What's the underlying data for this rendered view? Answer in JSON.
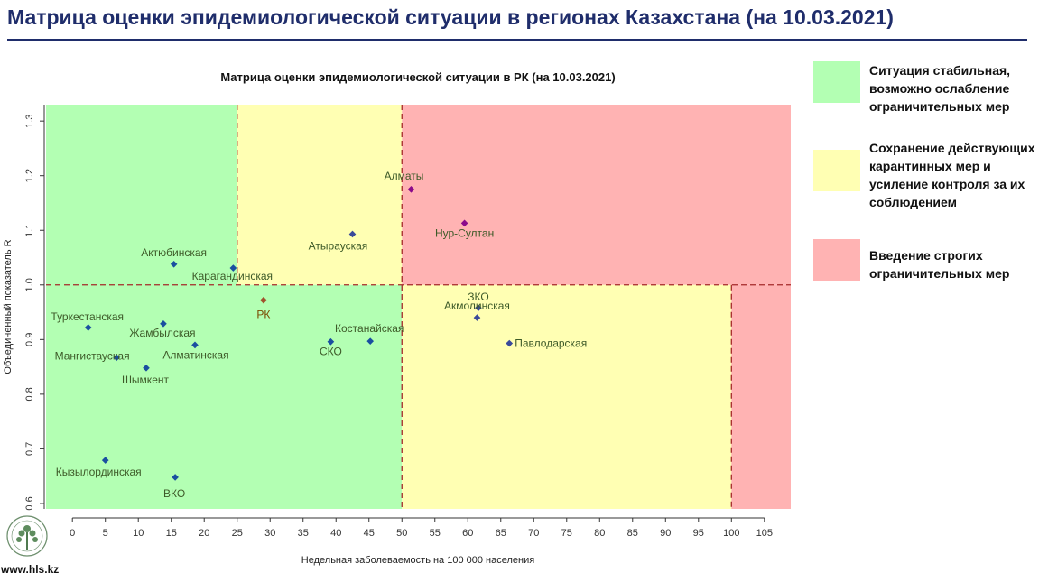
{
  "header": {
    "title": "Матрица оценки эпидемиологической ситуации в регионах Казахстана (на 10.03.2021)"
  },
  "legend": {
    "items": [
      {
        "color": "#b3ffb3",
        "text_lines": [
          "Ситуация стабильная,",
          "возможно ослабление",
          "ограничительных мер"
        ]
      },
      {
        "color": "#ffffb3",
        "text_lines": [
          "Сохранение действующих",
          "карантинных мер и",
          "усиление контроля за их",
          "соблюдением"
        ]
      },
      {
        "color": "#ffb3b3",
        "text_lines": [
          "Введение строгих",
          "ограничительных мер"
        ]
      }
    ]
  },
  "footer": {
    "site": "www.hls.kz"
  },
  "chart_data": {
    "type": "scatter",
    "title": "Матрица оценки эпидемиологической ситуации в РК (на 10.03.2021)",
    "xlabel": "Недельная заболеваемость на 100 000 населения",
    "ylabel": "Объединенный показатель R",
    "xlim": [
      -4,
      109
    ],
    "ylim": [
      0.59,
      1.33
    ],
    "x_ticks": [
      0,
      5,
      10,
      15,
      20,
      25,
      30,
      35,
      40,
      45,
      50,
      55,
      60,
      65,
      70,
      75,
      80,
      85,
      90,
      95,
      100,
      105
    ],
    "y_ticks": [
      0.6,
      0.7,
      0.8,
      0.9,
      1.0,
      1.1,
      1.2,
      1.3
    ],
    "y_tick_labels": [
      "0.6",
      "0.7",
      "0.8",
      "0.9",
      "1.0",
      "1.1",
      "1.2",
      "1.3"
    ],
    "thresholds": {
      "x": [
        25,
        50,
        100
      ],
      "y": 1.0
    },
    "zone_colors": {
      "green": "#b3ffb3",
      "yellow": "#ffffb3",
      "red": "#ffb3b3"
    },
    "points": [
      {
        "label": "Алматы",
        "x": 51.4,
        "y": 1.175,
        "color": "#8b0a8b"
      },
      {
        "label": "Нур-Султан",
        "x": 59.5,
        "y": 1.113,
        "color": "#8b0a8b"
      },
      {
        "label": "Атырауская",
        "x": 42.5,
        "y": 1.093,
        "color": "#3a4a9a"
      },
      {
        "label": "Актюбинская",
        "x": 15.4,
        "y": 1.038,
        "color": "#1a4fa0"
      },
      {
        "label": "Карагандинская",
        "x": 24.4,
        "y": 1.031,
        "color": "#1a4fa0"
      },
      {
        "label": "РК",
        "x": 29.0,
        "y": 0.972,
        "color": "#a0522d",
        "label_color": "#7a4a00"
      },
      {
        "label": "ЗКО",
        "x": 61.6,
        "y": 0.958,
        "color": "#3a4a9a"
      },
      {
        "label": "Акмолинская",
        "x": 61.4,
        "y": 0.94,
        "color": "#3a4a9a"
      },
      {
        "label": "Туркестанская",
        "x": 2.4,
        "y": 0.922,
        "color": "#1a4fa0"
      },
      {
        "label": "Жамбылская",
        "x": 13.8,
        "y": 0.929,
        "color": "#1a4fa0"
      },
      {
        "label": "Павлодарская",
        "x": 66.3,
        "y": 0.893,
        "color": "#3a4a9a"
      },
      {
        "label": "Алматинская",
        "x": 18.6,
        "y": 0.89,
        "color": "#1a4fa0"
      },
      {
        "label": "СКО",
        "x": 39.2,
        "y": 0.896,
        "color": "#1a4fa0"
      },
      {
        "label": "Костанайская",
        "x": 45.2,
        "y": 0.897,
        "color": "#1a4fa0"
      },
      {
        "label": "Мангистауская",
        "x": 6.7,
        "y": 0.867,
        "color": "#1a4fa0"
      },
      {
        "label": "Шымкент",
        "x": 11.2,
        "y": 0.848,
        "color": "#1a4fa0"
      },
      {
        "label": "Кызылординская",
        "x": 5.0,
        "y": 0.679,
        "color": "#1a4fa0"
      },
      {
        "label": "ВКО",
        "x": 15.6,
        "y": 0.648,
        "color": "#1a4fa0"
      }
    ]
  }
}
